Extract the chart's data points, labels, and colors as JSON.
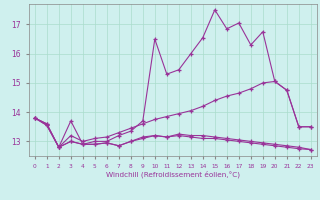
{
  "xlabel": "Windchill (Refroidissement éolien,°C)",
  "background_color": "#cff0ee",
  "grid_color": "#aaddcc",
  "line_color": "#993399",
  "x": [
    0,
    1,
    2,
    3,
    4,
    5,
    6,
    7,
    8,
    9,
    10,
    11,
    12,
    13,
    14,
    15,
    16,
    17,
    18,
    19,
    20,
    21,
    22,
    23
  ],
  "line1": [
    13.8,
    13.6,
    12.8,
    13.7,
    12.9,
    13.0,
    13.0,
    13.2,
    13.35,
    13.7,
    16.5,
    15.3,
    15.45,
    16.0,
    16.55,
    17.5,
    16.85,
    17.05,
    16.3,
    16.75,
    15.05,
    14.75,
    13.5,
    13.5
  ],
  "line2": [
    13.8,
    13.6,
    12.8,
    13.2,
    13.0,
    13.1,
    13.15,
    13.3,
    13.45,
    13.6,
    13.75,
    13.85,
    13.95,
    14.05,
    14.2,
    14.4,
    14.55,
    14.65,
    14.8,
    15.0,
    15.05,
    14.75,
    13.5,
    13.5
  ],
  "line3": [
    13.8,
    13.55,
    12.8,
    13.0,
    12.9,
    12.9,
    12.95,
    12.85,
    13.0,
    13.1,
    13.2,
    13.15,
    13.2,
    13.15,
    13.1,
    13.1,
    13.05,
    13.0,
    12.95,
    12.9,
    12.85,
    12.8,
    12.75,
    12.72
  ],
  "line4": [
    13.8,
    13.55,
    12.8,
    13.0,
    12.9,
    12.9,
    12.95,
    12.85,
    13.0,
    13.15,
    13.2,
    13.15,
    13.25,
    13.2,
    13.2,
    13.15,
    13.1,
    13.05,
    13.0,
    12.95,
    12.9,
    12.85,
    12.8,
    12.72
  ],
  "ylim": [
    12.5,
    17.7
  ],
  "yticks": [
    13,
    14,
    15,
    16,
    17
  ],
  "xticks": [
    0,
    1,
    2,
    3,
    4,
    5,
    6,
    7,
    8,
    9,
    10,
    11,
    12,
    13,
    14,
    15,
    16,
    17,
    18,
    19,
    20,
    21,
    22,
    23
  ]
}
